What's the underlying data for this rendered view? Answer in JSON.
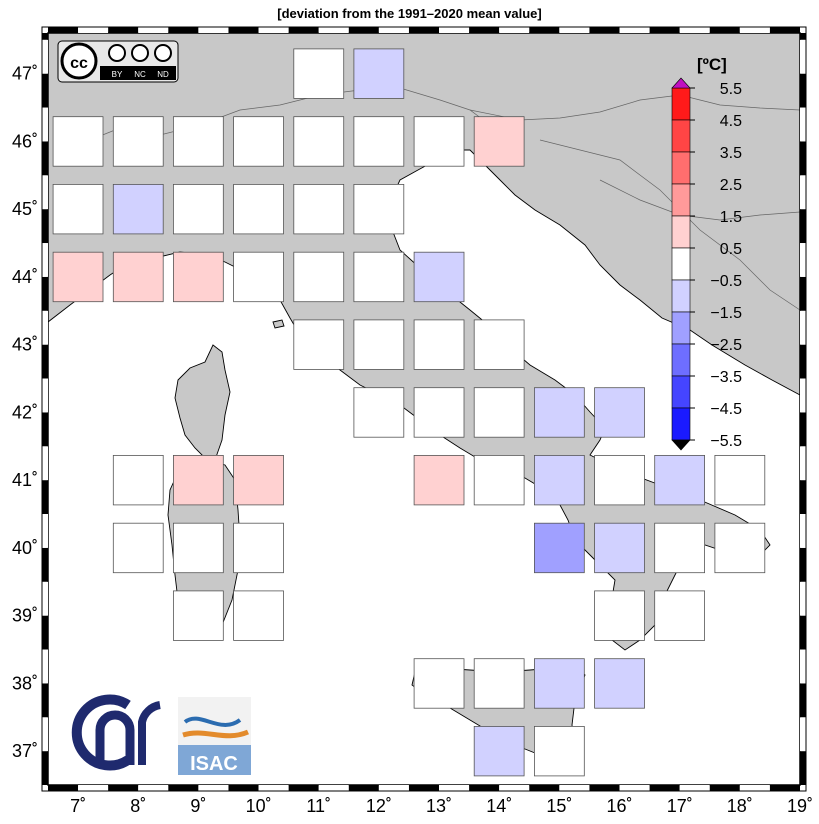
{
  "title": "[deviation from the 1991–2020 mean value]",
  "unit_label": "[ºC]",
  "license_badge": {
    "main": "cc",
    "labels": [
      "BY",
      "NC",
      "ND"
    ]
  },
  "isac_logo_text": "ISAC",
  "colors": {
    "land": "#c8c8c8",
    "sea": "#ffffff",
    "coast": "#000000",
    "cell_outline": "#555555"
  },
  "chart_data": {
    "type": "heatmap",
    "title": "[deviation from the 1991–2020 mean value]",
    "xlim": [
      6.5,
      19
    ],
    "ylim": [
      36.5,
      47.6
    ],
    "x_ticks": [
      {
        "value": 7,
        "label": "7˚"
      },
      {
        "value": 8,
        "label": "8˚"
      },
      {
        "value": 9,
        "label": "9˚"
      },
      {
        "value": 10,
        "label": "10˚"
      },
      {
        "value": 11,
        "label": "11˚"
      },
      {
        "value": 12,
        "label": "12˚"
      },
      {
        "value": 13,
        "label": "13˚"
      },
      {
        "value": 14,
        "label": "14˚"
      },
      {
        "value": 15,
        "label": "15˚"
      },
      {
        "value": 16,
        "label": "16˚"
      },
      {
        "value": 17,
        "label": "17˚"
      },
      {
        "value": 18,
        "label": "18˚"
      },
      {
        "value": 19,
        "label": "19˚"
      }
    ],
    "y_ticks": [
      {
        "value": 37,
        "label": "37˚"
      },
      {
        "value": 38,
        "label": "38˚"
      },
      {
        "value": 39,
        "label": "39˚"
      },
      {
        "value": 40,
        "label": "40˚"
      },
      {
        "value": 41,
        "label": "41˚"
      },
      {
        "value": 42,
        "label": "42˚"
      },
      {
        "value": 43,
        "label": "43˚"
      },
      {
        "value": 44,
        "label": "44˚"
      },
      {
        "value": 45,
        "label": "45˚"
      },
      {
        "value": 46,
        "label": "46˚"
      },
      {
        "value": 47,
        "label": "47˚"
      }
    ],
    "colorbar": {
      "unit": "[ºC]",
      "tick_labels": [
        "5.5",
        "4.5",
        "3.5",
        "2.5",
        "1.5",
        "0.5",
        "−0.5",
        "−1.5",
        "−2.5",
        "−3.5",
        "−4.5",
        "−5.5"
      ],
      "bins": [
        {
          "from": 4.5,
          "to": 5.5,
          "color": "#ff1a1a"
        },
        {
          "from": 3.5,
          "to": 4.5,
          "color": "#ff4545"
        },
        {
          "from": 2.5,
          "to": 3.5,
          "color": "#ff6e6e"
        },
        {
          "from": 1.5,
          "to": 2.5,
          "color": "#ff9a9a"
        },
        {
          "from": 0.5,
          "to": 1.5,
          "color": "#ffd1d1"
        },
        {
          "from": -0.5,
          "to": 0.5,
          "color": "#ffffff"
        },
        {
          "from": -1.5,
          "to": -0.5,
          "color": "#d1d1ff"
        },
        {
          "from": -2.5,
          "to": -1.5,
          "color": "#a0a0ff"
        },
        {
          "from": -3.5,
          "to": -2.5,
          "color": "#6e6eff"
        },
        {
          "from": -4.5,
          "to": -3.5,
          "color": "#4545ff"
        },
        {
          "from": -5.5,
          "to": -4.5,
          "color": "#1a1aff"
        }
      ],
      "over_color": "#c010c0",
      "under_color": "#000000"
    },
    "cells": [
      {
        "lon": 11,
        "lat": 47,
        "value": 0
      },
      {
        "lon": 12,
        "lat": 47,
        "value": -1
      },
      {
        "lon": 7,
        "lat": 46,
        "value": 0
      },
      {
        "lon": 8,
        "lat": 46,
        "value": 0
      },
      {
        "lon": 9,
        "lat": 46,
        "value": 0
      },
      {
        "lon": 10,
        "lat": 46,
        "value": 0
      },
      {
        "lon": 11,
        "lat": 46,
        "value": 0
      },
      {
        "lon": 12,
        "lat": 46,
        "value": 0
      },
      {
        "lon": 13,
        "lat": 46,
        "value": 0
      },
      {
        "lon": 14,
        "lat": 46,
        "value": 1
      },
      {
        "lon": 7,
        "lat": 45,
        "value": 0
      },
      {
        "lon": 8,
        "lat": 45,
        "value": -1
      },
      {
        "lon": 9,
        "lat": 45,
        "value": 0
      },
      {
        "lon": 10,
        "lat": 45,
        "value": 0
      },
      {
        "lon": 11,
        "lat": 45,
        "value": 0
      },
      {
        "lon": 12,
        "lat": 45,
        "value": 0
      },
      {
        "lon": 7,
        "lat": 44,
        "value": 1
      },
      {
        "lon": 8,
        "lat": 44,
        "value": 1
      },
      {
        "lon": 9,
        "lat": 44,
        "value": 1
      },
      {
        "lon": 10,
        "lat": 44,
        "value": 0
      },
      {
        "lon": 11,
        "lat": 44,
        "value": 0
      },
      {
        "lon": 12,
        "lat": 44,
        "value": 0
      },
      {
        "lon": 13,
        "lat": 44,
        "value": -1
      },
      {
        "lon": 11,
        "lat": 43,
        "value": 0
      },
      {
        "lon": 12,
        "lat": 43,
        "value": 0
      },
      {
        "lon": 13,
        "lat": 43,
        "value": 0
      },
      {
        "lon": 14,
        "lat": 43,
        "value": 0
      },
      {
        "lon": 12,
        "lat": 42,
        "value": 0
      },
      {
        "lon": 13,
        "lat": 42,
        "value": 0
      },
      {
        "lon": 14,
        "lat": 42,
        "value": 0
      },
      {
        "lon": 15,
        "lat": 42,
        "value": -1
      },
      {
        "lon": 16,
        "lat": 42,
        "value": -1
      },
      {
        "lon": 8,
        "lat": 41,
        "value": 0
      },
      {
        "lon": 9,
        "lat": 41,
        "value": 1
      },
      {
        "lon": 10,
        "lat": 41,
        "value": 1
      },
      {
        "lon": 13,
        "lat": 41,
        "value": 1
      },
      {
        "lon": 14,
        "lat": 41,
        "value": 0
      },
      {
        "lon": 15,
        "lat": 41,
        "value": -1
      },
      {
        "lon": 16,
        "lat": 41,
        "value": 0
      },
      {
        "lon": 17,
        "lat": 41,
        "value": -1
      },
      {
        "lon": 18,
        "lat": 41,
        "value": 0
      },
      {
        "lon": 8,
        "lat": 40,
        "value": 0
      },
      {
        "lon": 9,
        "lat": 40,
        "value": 0
      },
      {
        "lon": 10,
        "lat": 40,
        "value": 0
      },
      {
        "lon": 15,
        "lat": 40,
        "value": -2
      },
      {
        "lon": 16,
        "lat": 40,
        "value": -1
      },
      {
        "lon": 17,
        "lat": 40,
        "value": 0
      },
      {
        "lon": 18,
        "lat": 40,
        "value": 0
      },
      {
        "lon": 9,
        "lat": 39,
        "value": 0
      },
      {
        "lon": 10,
        "lat": 39,
        "value": 0
      },
      {
        "lon": 16,
        "lat": 39,
        "value": 0
      },
      {
        "lon": 17,
        "lat": 39,
        "value": 0
      },
      {
        "lon": 13,
        "lat": 38,
        "value": 0
      },
      {
        "lon": 14,
        "lat": 38,
        "value": 0
      },
      {
        "lon": 15,
        "lat": 38,
        "value": -1
      },
      {
        "lon": 16,
        "lat": 38,
        "value": -1
      },
      {
        "lon": 14,
        "lat": 37,
        "value": -1
      },
      {
        "lon": 15,
        "lat": 37,
        "value": 0
      }
    ]
  }
}
